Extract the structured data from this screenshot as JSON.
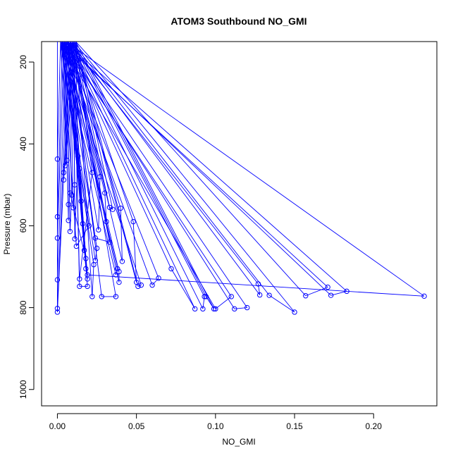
{
  "chart_data": {
    "type": "line",
    "title": "ATOM3 Southbound NO_GMI",
    "xlabel": "NO_GMI",
    "ylabel": "Pressure (mbar)",
    "xlim": [
      -0.01,
      0.24
    ],
    "ylim": [
      1040,
      150
    ],
    "y_reversed": true,
    "x_ticks": [
      0.0,
      0.05,
      0.1,
      0.15,
      0.2
    ],
    "x_tick_labels": [
      "0.00",
      "0.05",
      "0.10",
      "0.15",
      "0.20"
    ],
    "y_ticks": [
      200,
      400,
      600,
      800,
      1000
    ],
    "y_tick_labels": [
      "200",
      "400",
      "600",
      "800",
      "1000"
    ],
    "grid": false,
    "series_color": "#0000ff",
    "marker": "open-circle",
    "top_pressure": 150,
    "points": [
      [
        0.0,
        437
      ],
      [
        0.0,
        578
      ],
      [
        0.0,
        630
      ],
      [
        0.0,
        732
      ],
      [
        0.0,
        802
      ],
      [
        0.0,
        811
      ],
      [
        0.004,
        470
      ],
      [
        0.004,
        488
      ],
      [
        0.005,
        453
      ],
      [
        0.006,
        440
      ],
      [
        0.007,
        548
      ],
      [
        0.007,
        587
      ],
      [
        0.008,
        614
      ],
      [
        0.009,
        525
      ],
      [
        0.01,
        556
      ],
      [
        0.011,
        500
      ],
      [
        0.011,
        632
      ],
      [
        0.013,
        430
      ],
      [
        0.014,
        460
      ],
      [
        0.015,
        540
      ],
      [
        0.016,
        595
      ],
      [
        0.017,
        660
      ],
      [
        0.018,
        705
      ],
      [
        0.019,
        730
      ],
      [
        0.019,
        748
      ],
      [
        0.014,
        748
      ],
      [
        0.022,
        773
      ],
      [
        0.023,
        695
      ],
      [
        0.024,
        685
      ],
      [
        0.025,
        655
      ],
      [
        0.026,
        610
      ],
      [
        0.027,
        480
      ],
      [
        0.03,
        520
      ],
      [
        0.031,
        590
      ],
      [
        0.033,
        555
      ],
      [
        0.035,
        560
      ],
      [
        0.037,
        720
      ],
      [
        0.038,
        705
      ],
      [
        0.039,
        712
      ],
      [
        0.039,
        738
      ],
      [
        0.04,
        557
      ],
      [
        0.041,
        687
      ],
      [
        0.048,
        590
      ],
      [
        0.05,
        738
      ],
      [
        0.051,
        748
      ],
      [
        0.053,
        745
      ],
      [
        0.06,
        745
      ],
      [
        0.064,
        728
      ],
      [
        0.072,
        705
      ],
      [
        0.087,
        803
      ],
      [
        0.092,
        803
      ],
      [
        0.093,
        773
      ],
      [
        0.094,
        773
      ],
      [
        0.099,
        803
      ],
      [
        0.1,
        803
      ],
      [
        0.11,
        773
      ],
      [
        0.112,
        803
      ],
      [
        0.12,
        800
      ],
      [
        0.127,
        742
      ],
      [
        0.128,
        769
      ],
      [
        0.134,
        770
      ],
      [
        0.15,
        811
      ],
      [
        0.157,
        771
      ],
      [
        0.171,
        750
      ],
      [
        0.173,
        770
      ],
      [
        0.183,
        760
      ],
      [
        0.232,
        772
      ],
      [
        0.019,
        720
      ],
      [
        0.028,
        773
      ],
      [
        0.037,
        773
      ],
      [
        0.014,
        730
      ],
      [
        0.022,
        470
      ],
      [
        0.02,
        600
      ],
      [
        0.012,
        650
      ],
      [
        0.008,
        520
      ],
      [
        0.018,
        680
      ],
      [
        0.024,
        630
      ],
      [
        0.033,
        640
      ]
    ]
  }
}
